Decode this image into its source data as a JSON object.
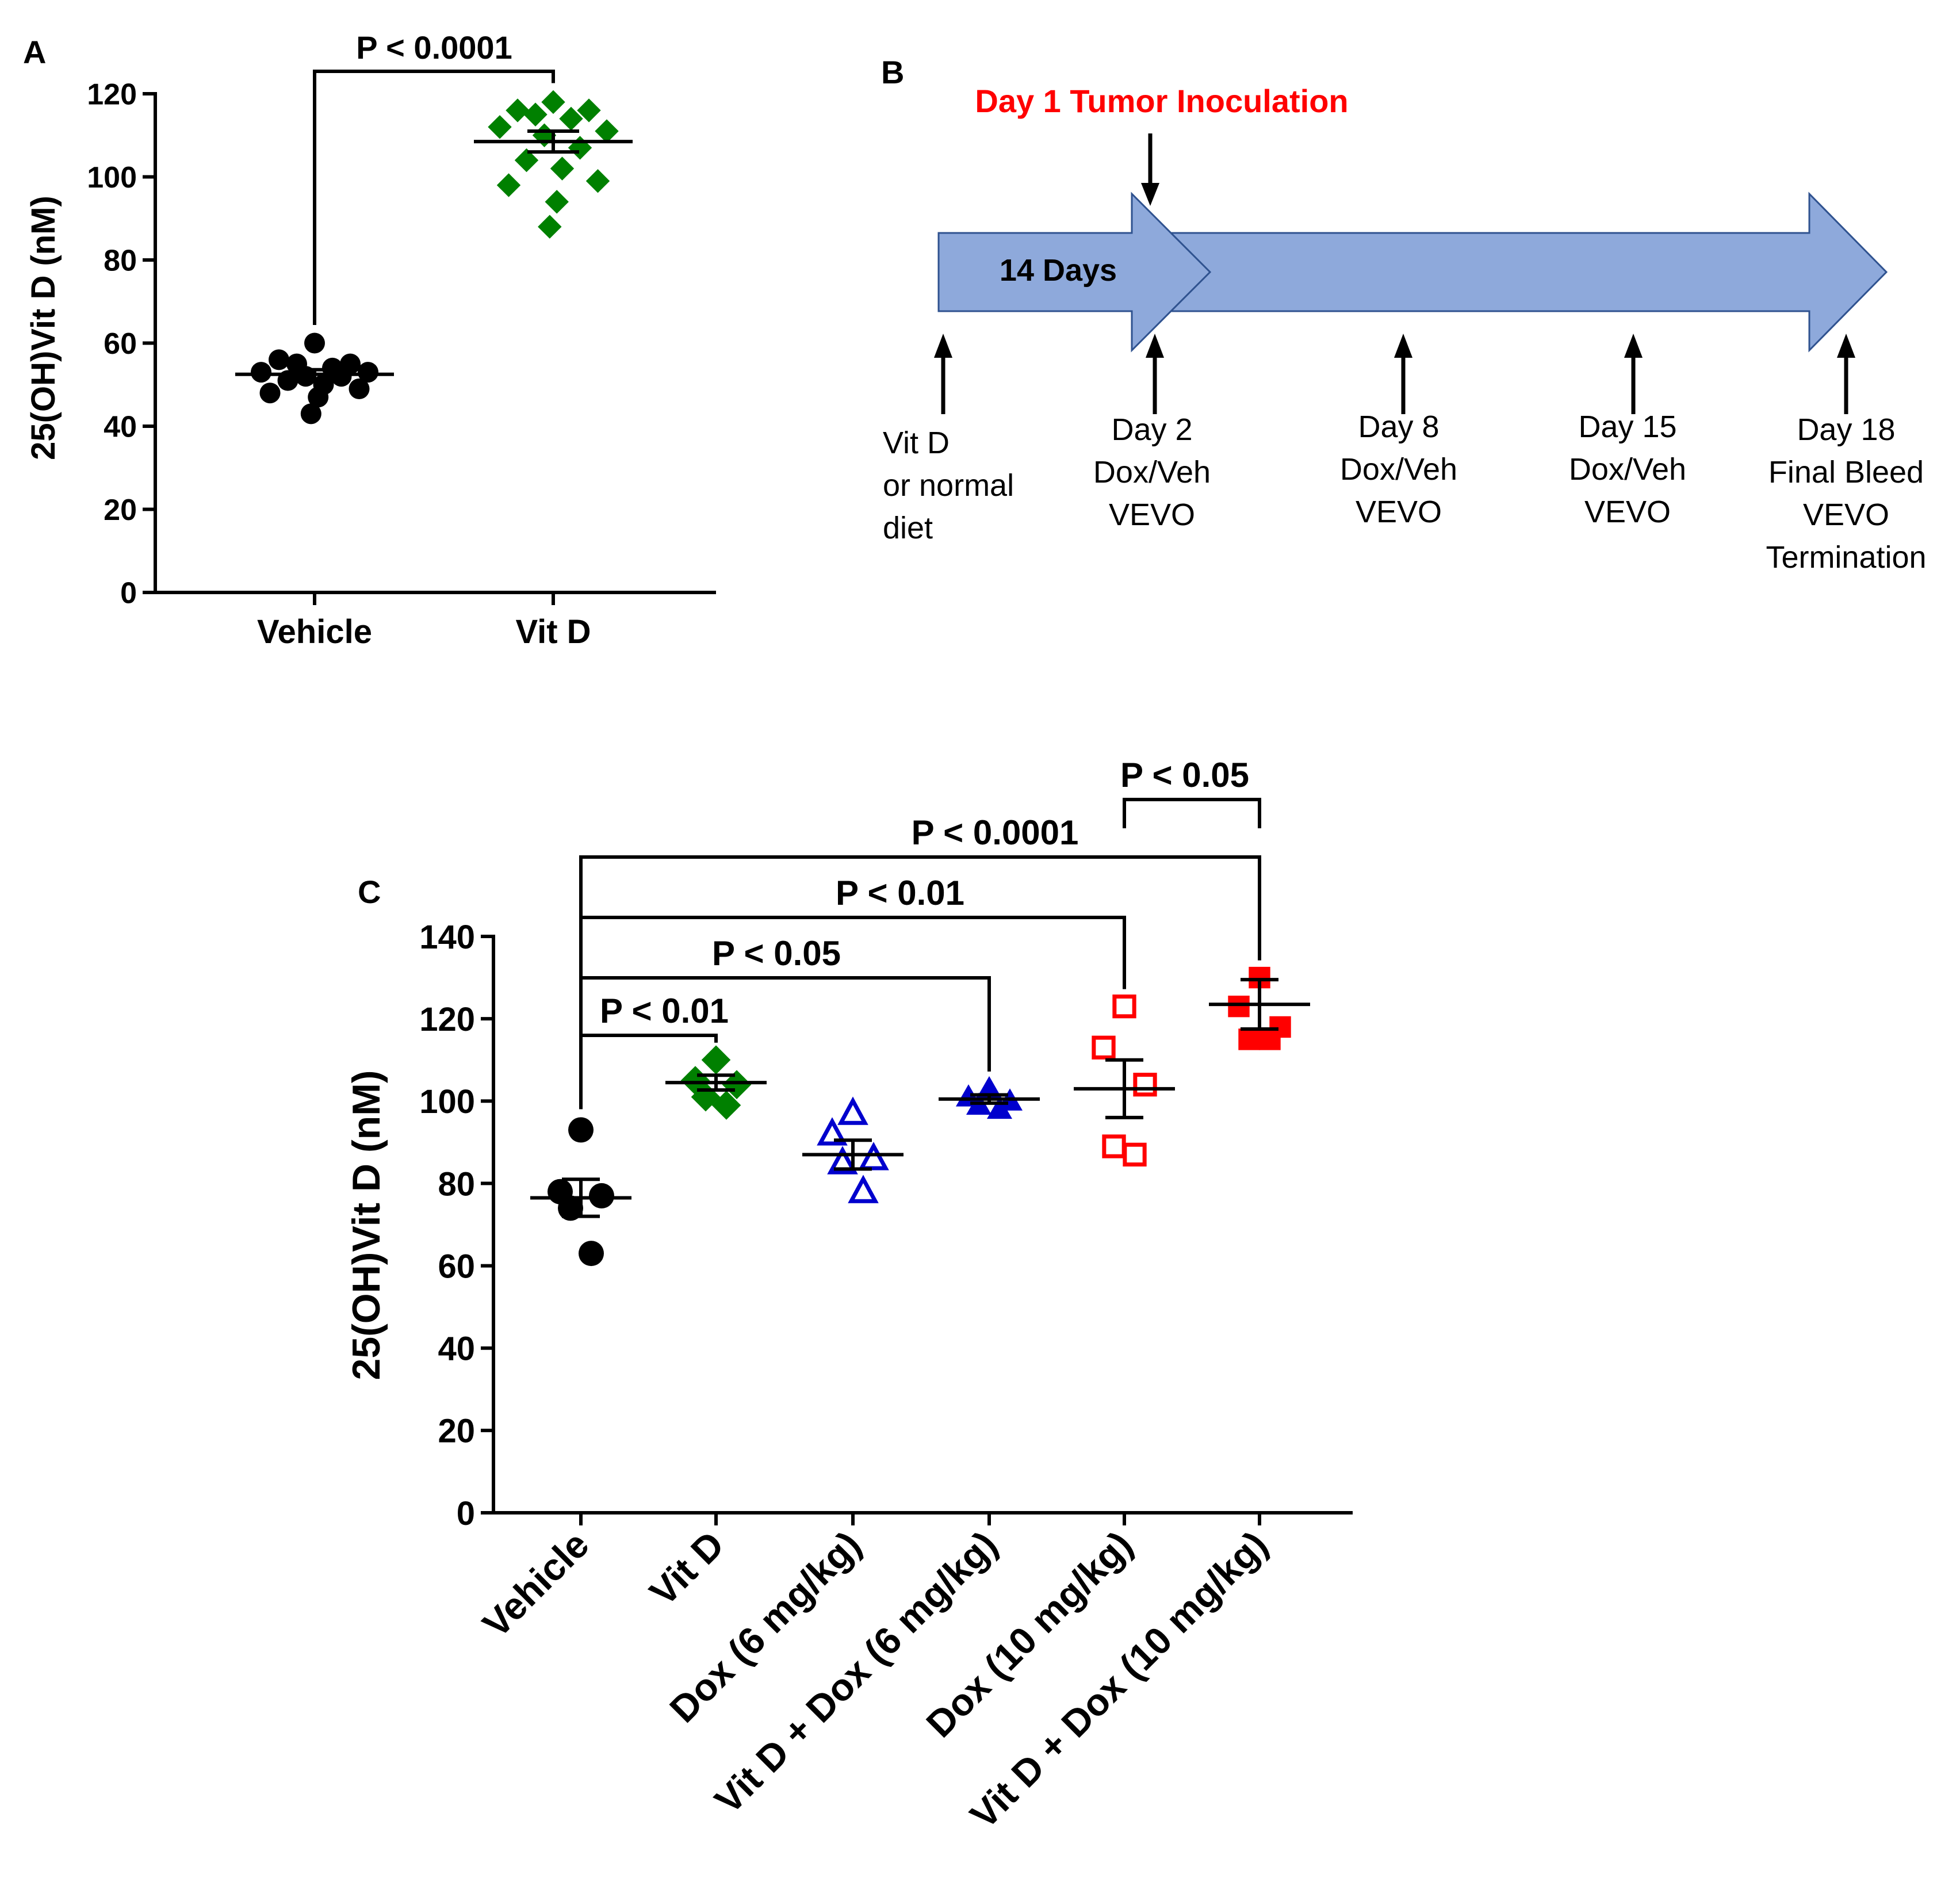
{
  "chart_data": [
    {
      "panel": "A",
      "type": "scatter",
      "ylabel": "25(OH)Vit D (nM)",
      "ylim": [
        0,
        120
      ],
      "yticks": [
        0,
        20,
        40,
        60,
        80,
        100,
        120
      ],
      "categories": [
        "Vehicle",
        "Vit D"
      ],
      "series": [
        {
          "name": "Vehicle",
          "marker": "filled-circle",
          "color": "#000000",
          "values": [
            60,
            56,
            55,
            55,
            54,
            53,
            53,
            52,
            52,
            51,
            50,
            49,
            48,
            47,
            43
          ],
          "mean": 52.5,
          "sem": 1.1
        },
        {
          "name": "Vit D",
          "marker": "filled-diamond",
          "color": "#008000",
          "values": [
            118,
            116,
            116,
            115,
            114,
            112,
            111,
            110,
            107,
            104,
            102,
            99,
            98,
            94,
            88
          ],
          "mean": 108.5,
          "sem": 2.5
        }
      ],
      "comparisons": [
        {
          "from": "Vehicle",
          "to": "Vit D",
          "label": "P < 0.0001"
        }
      ]
    },
    {
      "panel": "C",
      "type": "scatter",
      "ylabel": "25(OH)Vit D (nM)",
      "ylim": [
        0,
        140
      ],
      "yticks": [
        0,
        20,
        40,
        60,
        80,
        100,
        120,
        140
      ],
      "categories": [
        "Vehicle",
        "Vit D",
        "Dox (6 mg/kg)",
        "Vit D + Dox (6 mg/kg)",
        "Dox (10 mg/kg)",
        "Vit D + Dox (10 mg/kg)"
      ],
      "series": [
        {
          "name": "Vehicle",
          "marker": "filled-circle",
          "color": "#000000",
          "values": [
            93,
            78,
            77,
            74,
            63
          ],
          "mean": 76.5,
          "sem": 4.5
        },
        {
          "name": "Vit D",
          "marker": "filled-diamond",
          "color": "#008000",
          "values": [
            110,
            105,
            104,
            101,
            99
          ],
          "mean": 104.5,
          "sem": 1.8
        },
        {
          "name": "Dox (6 mg/kg)",
          "marker": "open-triangle",
          "color": "#0000CD",
          "values": [
            97,
            92,
            86,
            85,
            78
          ],
          "mean": 87,
          "sem": 3.5
        },
        {
          "name": "Vit D + Dox (6 mg/kg)",
          "marker": "filled-triangle",
          "color": "#0000CD",
          "values": [
            103,
            101,
            100,
            99,
            98
          ],
          "mean": 100.5,
          "sem": 1.0
        },
        {
          "name": "Dox (10 mg/kg)",
          "marker": "open-square",
          "color": "#FF0000",
          "values": [
            123,
            113,
            104,
            89,
            87
          ],
          "mean": 103,
          "sem": 7
        },
        {
          "name": "Vit D + Dox (10 mg/kg)",
          "marker": "filled-square",
          "color": "#FF0000",
          "values": [
            130,
            123,
            118,
            115,
            115
          ],
          "mean": 123.5,
          "sem": 6
        }
      ],
      "comparisons": [
        {
          "from": "Vehicle",
          "to": "Vit D",
          "label": "P < 0.01"
        },
        {
          "from": "Vehicle",
          "to": "Vit D + Dox (6 mg/kg)",
          "label": "P < 0.05"
        },
        {
          "from": "Vehicle",
          "to": "Dox (10 mg/kg)",
          "label": "P < 0.01"
        },
        {
          "from": "Vehicle",
          "to": "Vit D + Dox (10 mg/kg)",
          "label": "P < 0.0001"
        },
        {
          "from": "Dox (10 mg/kg)",
          "to": "Vit D + Dox (10 mg/kg)",
          "label": "P < 0.05"
        }
      ]
    }
  ],
  "timeline": {
    "panel": "B",
    "inoculation_label": "Day 1 Tumor Inoculation",
    "inoculation_color": "#FF0000",
    "arrow_color": "#8EA9DB",
    "arrow_label": "14 Days",
    "events": [
      {
        "lines": [
          "Vit D",
          "or normal",
          "diet"
        ]
      },
      {
        "lines": [
          "Day 2",
          "Dox/Veh",
          "VEVO"
        ]
      },
      {
        "lines": [
          "Day 8",
          "Dox/Veh",
          "VEVO"
        ]
      },
      {
        "lines": [
          "Day 15",
          "Dox/Veh",
          "VEVO"
        ]
      },
      {
        "lines": [
          "Day 18",
          "Final Bleed",
          "VEVO",
          "Termination"
        ]
      }
    ]
  },
  "panel_labels": {
    "a": "A",
    "b": "B",
    "c": "C"
  }
}
